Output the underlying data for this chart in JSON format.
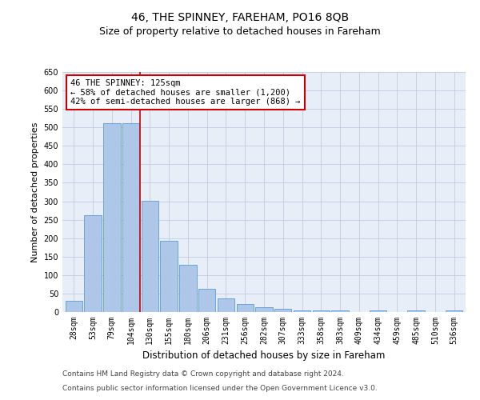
{
  "title": "46, THE SPINNEY, FAREHAM, PO16 8QB",
  "subtitle": "Size of property relative to detached houses in Fareham",
  "xlabel": "Distribution of detached houses by size in Fareham",
  "ylabel": "Number of detached properties",
  "footer_line1": "Contains HM Land Registry data © Crown copyright and database right 2024.",
  "footer_line2": "Contains public sector information licensed under the Open Government Licence v3.0.",
  "categories": [
    "28sqm",
    "53sqm",
    "79sqm",
    "104sqm",
    "130sqm",
    "155sqm",
    "180sqm",
    "206sqm",
    "231sqm",
    "256sqm",
    "282sqm",
    "307sqm",
    "333sqm",
    "358sqm",
    "383sqm",
    "409sqm",
    "434sqm",
    "459sqm",
    "485sqm",
    "510sqm",
    "536sqm"
  ],
  "values": [
    30,
    263,
    512,
    511,
    302,
    193,
    128,
    63,
    37,
    21,
    14,
    9,
    5,
    5,
    5,
    0,
    5,
    0,
    5,
    0,
    5
  ],
  "bar_color": "#aec6e8",
  "bar_edge_color": "#5b9bd5",
  "background_color": "#e8eef8",
  "grid_color": "#c0cce0",
  "annotation_line1": "46 THE SPINNEY: 125sqm",
  "annotation_line2": "← 58% of detached houses are smaller (1,200)",
  "annotation_line3": "42% of semi-detached houses are larger (868) →",
  "annotation_box_edge": "#cc0000",
  "vline_x": 3.5,
  "vline_color": "#cc0000",
  "ylim": [
    0,
    650
  ],
  "yticks": [
    0,
    50,
    100,
    150,
    200,
    250,
    300,
    350,
    400,
    450,
    500,
    550,
    600,
    650
  ],
  "title_fontsize": 10,
  "subtitle_fontsize": 9,
  "xlabel_fontsize": 8.5,
  "ylabel_fontsize": 8,
  "tick_fontsize": 7,
  "annotation_fontsize": 7.5,
  "footer_fontsize": 6.5
}
